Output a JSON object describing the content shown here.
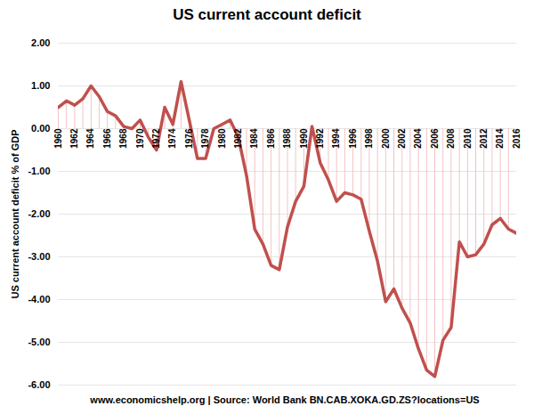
{
  "chart_data": {
    "type": "line",
    "title": "US current account deficit",
    "y_label": "US current account deficit % of GDP",
    "caption": "www.economicshelp.org | Source:  World Bank BN.CAB.XOKA.GD.ZS?locations=US",
    "x": [
      1960,
      1961,
      1962,
      1963,
      1964,
      1965,
      1966,
      1967,
      1968,
      1969,
      1970,
      1971,
      1972,
      1973,
      1974,
      1975,
      1976,
      1977,
      1978,
      1979,
      1980,
      1981,
      1982,
      1983,
      1984,
      1985,
      1986,
      1987,
      1988,
      1989,
      1990,
      1991,
      1992,
      1993,
      1994,
      1995,
      1996,
      1997,
      1998,
      1999,
      2000,
      2001,
      2002,
      2003,
      2004,
      2005,
      2006,
      2007,
      2008,
      2009,
      2010,
      2011,
      2012,
      2013,
      2014,
      2015,
      2016
    ],
    "values": [
      0.5,
      0.65,
      0.55,
      0.7,
      1.0,
      0.75,
      0.4,
      0.3,
      0.05,
      0.0,
      0.2,
      -0.2,
      -0.5,
      0.5,
      0.1,
      1.1,
      0.2,
      -0.7,
      -0.7,
      0.0,
      0.1,
      0.2,
      -0.2,
      -1.1,
      -2.35,
      -2.7,
      -3.2,
      -3.3,
      -2.3,
      -1.7,
      -1.35,
      0.05,
      -0.8,
      -1.2,
      -1.7,
      -1.5,
      -1.55,
      -1.65,
      -2.4,
      -3.1,
      -4.05,
      -3.75,
      -4.2,
      -4.55,
      -5.15,
      -5.65,
      -5.8,
      -4.95,
      -4.65,
      -2.65,
      -3.0,
      -2.95,
      -2.7,
      -2.25,
      -2.1,
      -2.35,
      -2.45
    ],
    "color": "#c0504d",
    "xlim": [
      1960,
      2016
    ],
    "xticks": [
      1960,
      1962,
      1964,
      1966,
      1968,
      1970,
      1972,
      1974,
      1976,
      1978,
      1980,
      1982,
      1984,
      1986,
      1988,
      1990,
      1992,
      1994,
      1996,
      1998,
      2000,
      2002,
      2004,
      2006,
      2008,
      2010,
      2012,
      2014,
      2016
    ],
    "ylim": [
      -6,
      2
    ],
    "yticks": [
      {
        "value": 2,
        "label": "2.00"
      },
      {
        "value": 1,
        "label": "1.00"
      },
      {
        "value": 0,
        "label": "0.00"
      },
      {
        "value": -1,
        "label": "-1.00"
      },
      {
        "value": -2,
        "label": "-2.00"
      },
      {
        "value": -3,
        "label": "-3.00"
      },
      {
        "value": -4,
        "label": "-4.00"
      },
      {
        "value": -5,
        "label": "-5.00"
      },
      {
        "value": -6,
        "label": "-6.00"
      }
    ],
    "grid": true
  }
}
